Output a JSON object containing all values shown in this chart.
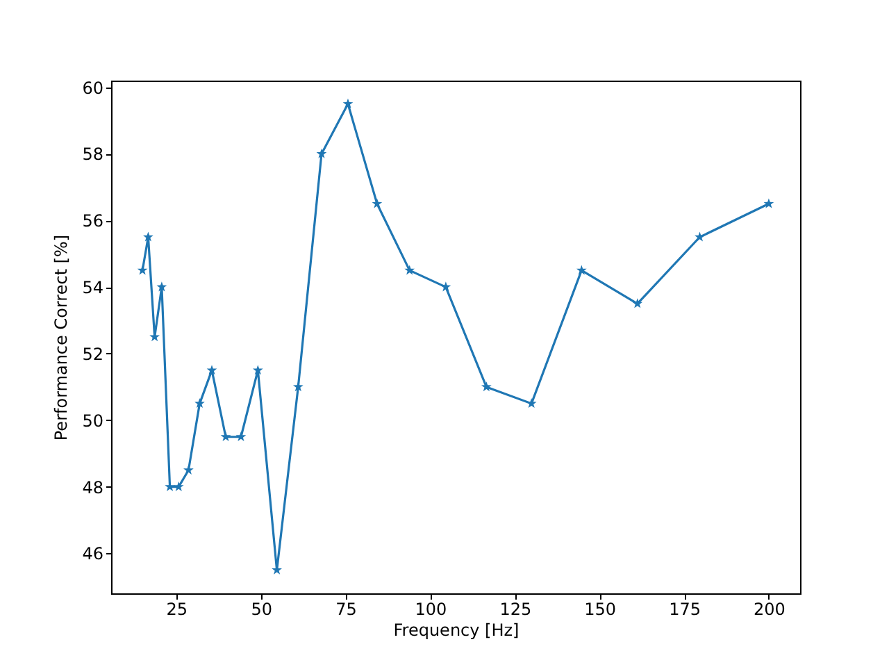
{
  "chart_data": {
    "type": "line",
    "xlabel": "Frequency [Hz]",
    "ylabel": "Performance Correct [%]",
    "x": [
      15,
      16.7,
      18.6,
      20.7,
      23.1,
      25.7,
      28.6,
      31.9,
      35.5,
      39.6,
      44.1,
      49.1,
      54.7,
      61,
      67.9,
      75.7,
      84.3,
      93.9,
      104.6,
      116.6,
      129.9,
      144.7,
      161.2,
      179.6,
      200
    ],
    "series": [
      {
        "color": "#1f77b4",
        "values": [
          54.5,
          55.5,
          52.5,
          54,
          48,
          48,
          48.5,
          50.5,
          51.5,
          49.5,
          49.5,
          51.5,
          45.5,
          51,
          58,
          59.5,
          56.5,
          54.5,
          54,
          51,
          50.5,
          54.5,
          53.5,
          55.5,
          56.5
        ]
      }
    ],
    "xlim": [
      5.75,
      209.25
    ],
    "xticks": [
      25,
      50,
      75,
      100,
      125,
      150,
      175,
      200
    ],
    "ylim": [
      44.8,
      60.2
    ],
    "yticks": [
      46,
      48,
      50,
      52,
      54,
      56,
      58,
      60
    ],
    "marker": "star",
    "line_style": "solid",
    "grid": false
  }
}
